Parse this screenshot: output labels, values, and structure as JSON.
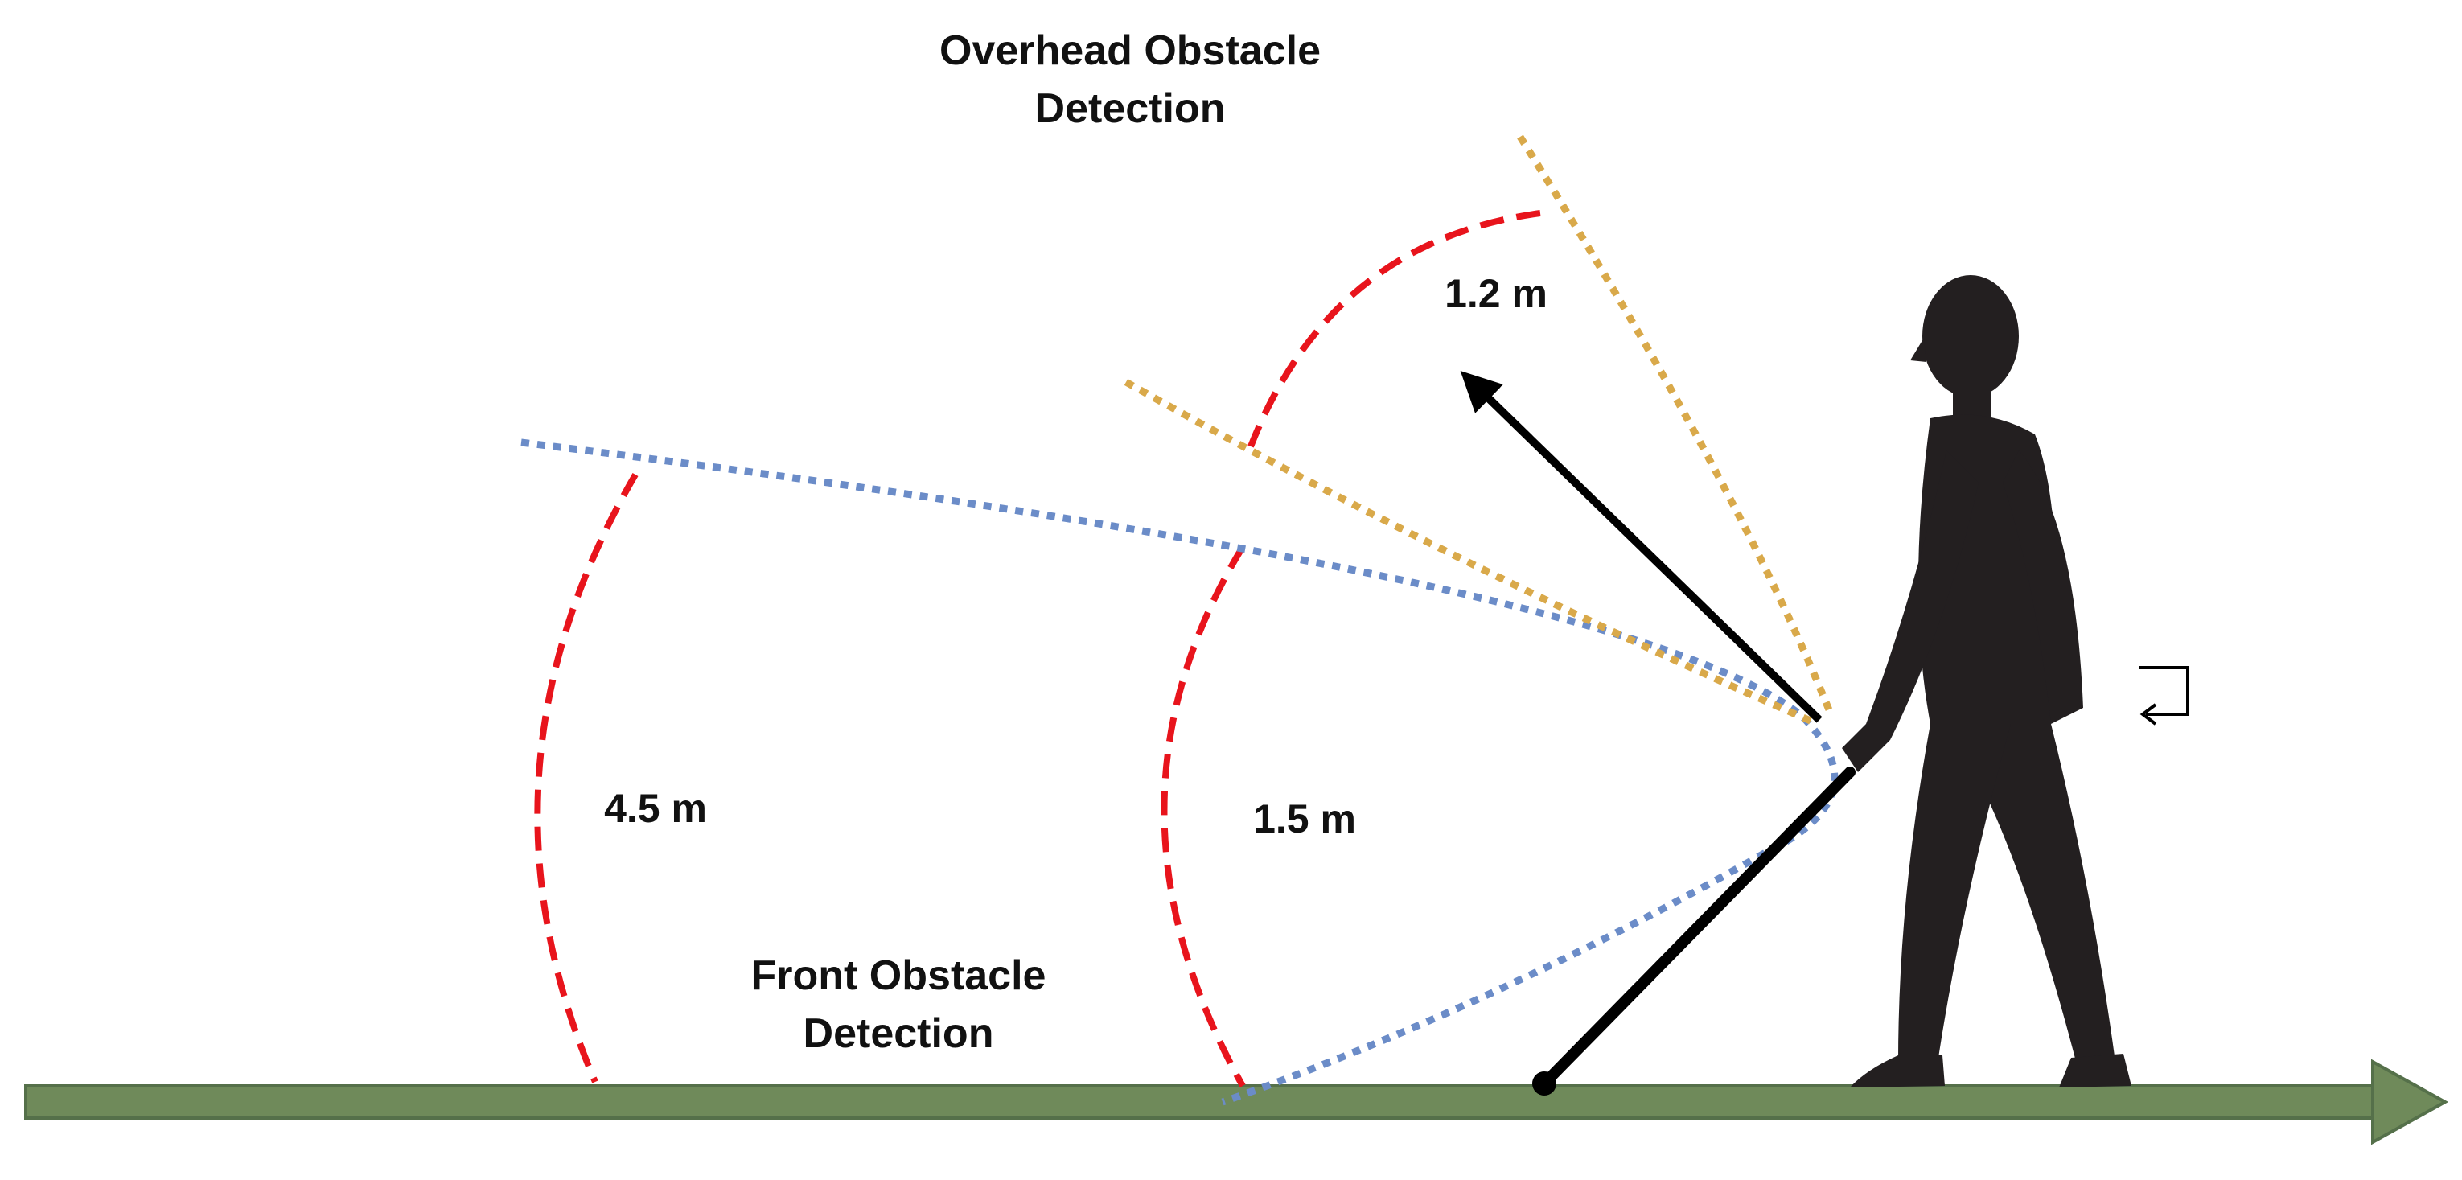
{
  "labels": {
    "overhead_title_line1": "Overhead Obstacle",
    "overhead_title_line2": "Detection",
    "front_title_line1": "Front Obstacle",
    "front_title_line2": "Detection",
    "range_overhead": "1.2 m",
    "range_far": "4.5 m",
    "range_near": "1.5 m"
  },
  "colors": {
    "range_arc": "#e8141c",
    "front_beam": "#6b8cc8",
    "overhead_beam": "#d9a94a",
    "ground": "#6f8a5a",
    "ground_edge": "#55704a",
    "silhouette": "#231f20",
    "arrow": "#000000"
  },
  "icons": {
    "return_symbol": "return-arrow-icon",
    "person": "person-walking-silhouette"
  }
}
